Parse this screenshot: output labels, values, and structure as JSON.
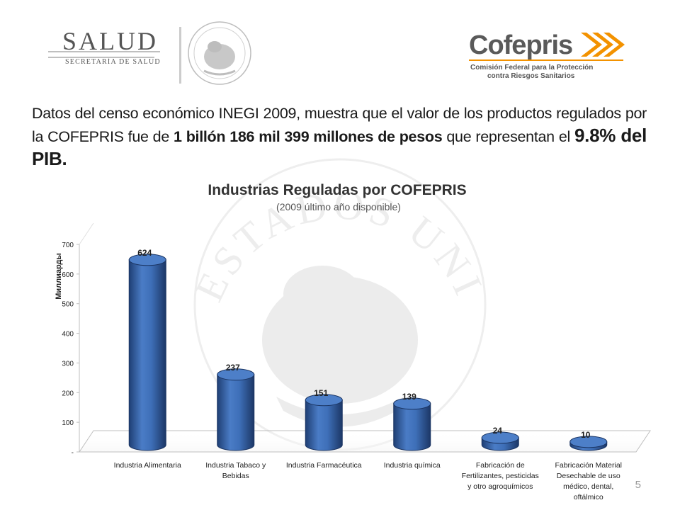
{
  "header": {
    "salud": {
      "name": "SALUD",
      "subtitle": "SECRETARÍA DE SALUD",
      "seal_text": "ESTADOS UNIDOS MEXICANOS"
    },
    "cofepris": {
      "name": "Cofepris",
      "line1": "Comisión Federal para la Protección",
      "line2": "contra Riesgos Sanitarios"
    }
  },
  "intro": {
    "part1": "Datos del censo económico INEGI 2009, muestra que el valor de los productos regulados por la COFEPRIS fue de ",
    "bold1": "1 billón 186 mil 399 millones de pesos",
    "part2": " que representan el ",
    "bold2": "9.8% del PIB."
  },
  "watermark_text": "ESTADOS UNIDOS MEXICANOS",
  "chart_data": {
    "type": "bar",
    "title": "Industrias Reguladas por COFEPRIS",
    "subtitle": "(2009 último año disponible)",
    "ylabel": "Миллиарды",
    "xlabel": "",
    "ylim": [
      0,
      700
    ],
    "yticks": [
      0,
      100,
      200,
      300,
      400,
      500,
      600,
      700
    ],
    "ytick_labels": [
      "-",
      "100",
      "200",
      "300",
      "400",
      "500",
      "600",
      "700"
    ],
    "categories": [
      [
        "Industria Alimentaria"
      ],
      [
        "Industria Tabaco y",
        "Bebidas"
      ],
      [
        "Industria Farmacéutica"
      ],
      [
        "Industria química"
      ],
      [
        "Fabricación de",
        "Fertilizantes, pesticidas",
        "y otro agroquímicos"
      ],
      [
        "Fabricación Material",
        "Desechable de uso",
        "médico, dental,",
        "oftálmico"
      ]
    ],
    "values": [
      624,
      237,
      151,
      139,
      24,
      10
    ],
    "data_labels": [
      "624",
      "237",
      "151",
      "139",
      "24",
      "10"
    ],
    "grid": false,
    "bar_color": "#3e6fb8"
  },
  "slide_number": "5"
}
